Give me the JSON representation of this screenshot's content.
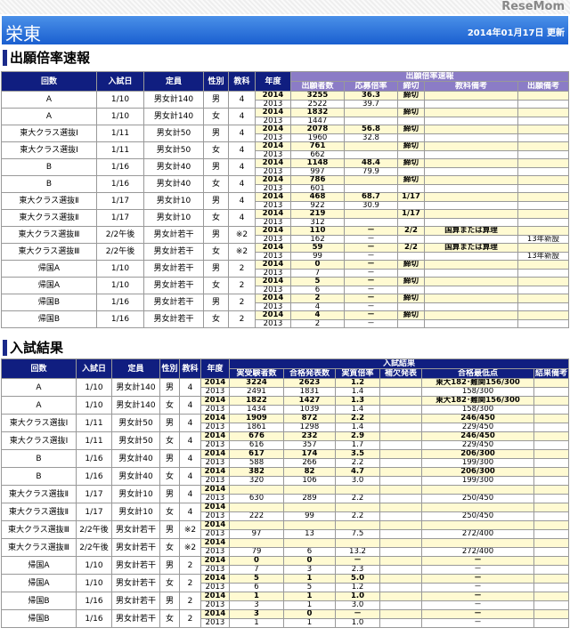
{
  "header": {
    "title": "栄東",
    "updated": "2014年01月17日 更新"
  },
  "section1": {
    "title": "出願倍率速報",
    "columns": [
      "回数",
      "入試日",
      "定員",
      "性別",
      "教科",
      "年度"
    ],
    "group_label": "出願倍率速報",
    "sub_columns": [
      "出願者数",
      "応募倍率",
      "締切",
      "教科備考",
      "出願備考"
    ],
    "rows": [
      {
        "round": "A",
        "date": "1/10",
        "cap": "男女計140",
        "sex": "男",
        "subj": "4",
        "y2014": [
          "2014",
          "3255",
          "36.3",
          "締切",
          "",
          ""
        ],
        "y2013": [
          "2013",
          "2522",
          "39.7",
          "",
          "",
          ""
        ]
      },
      {
        "round": "A",
        "date": "1/10",
        "cap": "男女計140",
        "sex": "女",
        "subj": "4",
        "y2014": [
          "2014",
          "1832",
          "",
          "締切",
          "",
          ""
        ],
        "y2013": [
          "2013",
          "1447",
          "",
          "",
          "",
          ""
        ]
      },
      {
        "round": "東大クラス選抜Ⅰ",
        "date": "1/11",
        "cap": "男女計50",
        "sex": "男",
        "subj": "4",
        "y2014": [
          "2014",
          "2078",
          "56.8",
          "締切",
          "",
          ""
        ],
        "y2013": [
          "2013",
          "1960",
          "32.8",
          "",
          "",
          ""
        ]
      },
      {
        "round": "東大クラス選抜Ⅰ",
        "date": "1/11",
        "cap": "男女計50",
        "sex": "女",
        "subj": "4",
        "y2014": [
          "2014",
          "761",
          "",
          "締切",
          "",
          ""
        ],
        "y2013": [
          "2013",
          "662",
          "",
          "",
          "",
          ""
        ]
      },
      {
        "round": "B",
        "date": "1/16",
        "cap": "男女計40",
        "sex": "男",
        "subj": "4",
        "y2014": [
          "2014",
          "1148",
          "48.4",
          "締切",
          "",
          ""
        ],
        "y2013": [
          "2013",
          "997",
          "79.9",
          "",
          "",
          ""
        ]
      },
      {
        "round": "B",
        "date": "1/16",
        "cap": "男女計40",
        "sex": "女",
        "subj": "4",
        "y2014": [
          "2014",
          "786",
          "",
          "締切",
          "",
          ""
        ],
        "y2013": [
          "2013",
          "601",
          "",
          "",
          "",
          ""
        ]
      },
      {
        "round": "東大クラス選抜Ⅱ",
        "date": "1/17",
        "cap": "男女計10",
        "sex": "男",
        "subj": "4",
        "y2014": [
          "2014",
          "468",
          "68.7",
          "1/17",
          "",
          ""
        ],
        "y2013": [
          "2013",
          "922",
          "30.9",
          "",
          "",
          ""
        ]
      },
      {
        "round": "東大クラス選抜Ⅱ",
        "date": "1/17",
        "cap": "男女計10",
        "sex": "女",
        "subj": "4",
        "y2014": [
          "2014",
          "219",
          "",
          "1/17",
          "",
          ""
        ],
        "y2013": [
          "2013",
          "312",
          "",
          "",
          "",
          ""
        ]
      },
      {
        "round": "東大クラス選抜Ⅲ",
        "date": "2/2午後",
        "cap": "男女計若干",
        "sex": "男",
        "subj": "※2",
        "y2014": [
          "2014",
          "110",
          "－",
          "2/2",
          "国算または算理",
          ""
        ],
        "y2013": [
          "2013",
          "162",
          "－",
          "",
          "",
          "13年新設"
        ]
      },
      {
        "round": "東大クラス選抜Ⅲ",
        "date": "2/2午後",
        "cap": "男女計若干",
        "sex": "女",
        "subj": "※2",
        "y2014": [
          "2014",
          "59",
          "－",
          "2/2",
          "国算または算理",
          ""
        ],
        "y2013": [
          "2013",
          "99",
          "－",
          "",
          "",
          "13年新設"
        ]
      },
      {
        "round": "帰国A",
        "date": "1/10",
        "cap": "男女計若干",
        "sex": "男",
        "subj": "2",
        "y2014": [
          "2014",
          "0",
          "－",
          "締切",
          "",
          ""
        ],
        "y2013": [
          "2013",
          "7",
          "－",
          "",
          "",
          ""
        ]
      },
      {
        "round": "帰国A",
        "date": "1/10",
        "cap": "男女計若干",
        "sex": "女",
        "subj": "2",
        "y2014": [
          "2014",
          "5",
          "－",
          "締切",
          "",
          ""
        ],
        "y2013": [
          "2013",
          "6",
          "－",
          "",
          "",
          ""
        ]
      },
      {
        "round": "帰国B",
        "date": "1/16",
        "cap": "男女計若干",
        "sex": "男",
        "subj": "2",
        "y2014": [
          "2014",
          "2",
          "－",
          "締切",
          "",
          ""
        ],
        "y2013": [
          "2013",
          "4",
          "－",
          "",
          "",
          ""
        ]
      },
      {
        "round": "帰国B",
        "date": "1/16",
        "cap": "男女計若干",
        "sex": "女",
        "subj": "2",
        "y2014": [
          "2014",
          "4",
          "－",
          "締切",
          "",
          ""
        ],
        "y2013": [
          "2013",
          "2",
          "－",
          "",
          "",
          ""
        ]
      }
    ]
  },
  "section2": {
    "title": "入試結果",
    "columns": [
      "回数",
      "入試日",
      "定員",
      "性別",
      "教科",
      "年度"
    ],
    "group_label": "入試結果",
    "sub_columns": [
      "実受験者数",
      "合格発表数",
      "実質倍率",
      "補欠発表",
      "合格最低点",
      "結果備考"
    ],
    "rows": [
      {
        "round": "A",
        "date": "1/10",
        "cap": "男女計140",
        "sex": "男",
        "subj": "4",
        "y2014": [
          "2014",
          "3224",
          "2623",
          "1.2",
          "",
          "東大182･難関156/300",
          ""
        ],
        "y2013": [
          "2013",
          "2491",
          "1831",
          "1.4",
          "",
          "158/300",
          ""
        ]
      },
      {
        "round": "A",
        "date": "1/10",
        "cap": "男女計140",
        "sex": "女",
        "subj": "4",
        "y2014": [
          "2014",
          "1822",
          "1427",
          "1.3",
          "",
          "東大182･難関156/300",
          ""
        ],
        "y2013": [
          "2013",
          "1434",
          "1039",
          "1.4",
          "",
          "158/300",
          ""
        ]
      },
      {
        "round": "東大クラス選抜Ⅰ",
        "date": "1/11",
        "cap": "男女計50",
        "sex": "男",
        "subj": "4",
        "y2014": [
          "2014",
          "1909",
          "872",
          "2.2",
          "",
          "246/450",
          ""
        ],
        "y2013": [
          "2013",
          "1861",
          "1298",
          "1.4",
          "",
          "229/450",
          ""
        ]
      },
      {
        "round": "東大クラス選抜Ⅰ",
        "date": "1/11",
        "cap": "男女計50",
        "sex": "女",
        "subj": "4",
        "y2014": [
          "2014",
          "676",
          "232",
          "2.9",
          "",
          "246/450",
          ""
        ],
        "y2013": [
          "2013",
          "616",
          "357",
          "1.7",
          "",
          "229/450",
          ""
        ]
      },
      {
        "round": "B",
        "date": "1/16",
        "cap": "男女計40",
        "sex": "男",
        "subj": "4",
        "y2014": [
          "2014",
          "617",
          "174",
          "3.5",
          "",
          "206/300",
          ""
        ],
        "y2013": [
          "2013",
          "588",
          "266",
          "2.2",
          "",
          "199/300",
          ""
        ]
      },
      {
        "round": "B",
        "date": "1/16",
        "cap": "男女計40",
        "sex": "女",
        "subj": "4",
        "y2014": [
          "2014",
          "382",
          "82",
          "4.7",
          "",
          "206/300",
          ""
        ],
        "y2013": [
          "2013",
          "320",
          "106",
          "3.0",
          "",
          "199/300",
          ""
        ]
      },
      {
        "round": "東大クラス選抜Ⅱ",
        "date": "1/17",
        "cap": "男女計10",
        "sex": "男",
        "subj": "4",
        "y2014": [
          "2014",
          "",
          "",
          "",
          "",
          "",
          ""
        ],
        "y2013": [
          "2013",
          "630",
          "289",
          "2.2",
          "",
          "250/450",
          ""
        ]
      },
      {
        "round": "東大クラス選抜Ⅱ",
        "date": "1/17",
        "cap": "男女計10",
        "sex": "女",
        "subj": "4",
        "y2014": [
          "2014",
          "",
          "",
          "",
          "",
          "",
          ""
        ],
        "y2013": [
          "2013",
          "222",
          "99",
          "2.2",
          "",
          "250/450",
          ""
        ]
      },
      {
        "round": "東大クラス選抜Ⅲ",
        "date": "2/2午後",
        "cap": "男女計若干",
        "sex": "男",
        "subj": "※2",
        "y2014": [
          "2014",
          "",
          "",
          "",
          "",
          "",
          ""
        ],
        "y2013": [
          "2013",
          "97",
          "13",
          "7.5",
          "",
          "272/400",
          ""
        ]
      },
      {
        "round": "東大クラス選抜Ⅲ",
        "date": "2/2午後",
        "cap": "男女計若干",
        "sex": "女",
        "subj": "※2",
        "y2014": [
          "2014",
          "",
          "",
          "",
          "",
          "",
          ""
        ],
        "y2013": [
          "2013",
          "79",
          "6",
          "13.2",
          "",
          "272/400",
          ""
        ]
      },
      {
        "round": "帰国A",
        "date": "1/10",
        "cap": "男女計若干",
        "sex": "男",
        "subj": "2",
        "y2014": [
          "2014",
          "0",
          "0",
          "－",
          "",
          "－",
          ""
        ],
        "y2013": [
          "2013",
          "7",
          "3",
          "2.3",
          "",
          "－",
          ""
        ]
      },
      {
        "round": "帰国A",
        "date": "1/10",
        "cap": "男女計若干",
        "sex": "女",
        "subj": "2",
        "y2014": [
          "2014",
          "5",
          "1",
          "5.0",
          "",
          "－",
          ""
        ],
        "y2013": [
          "2013",
          "6",
          "5",
          "1.2",
          "",
          "－",
          ""
        ]
      },
      {
        "round": "帰国B",
        "date": "1/16",
        "cap": "男女計若干",
        "sex": "男",
        "subj": "2",
        "y2014": [
          "2014",
          "1",
          "1",
          "1.0",
          "",
          "－",
          ""
        ],
        "y2013": [
          "2013",
          "3",
          "1",
          "3.0",
          "",
          "－",
          ""
        ]
      },
      {
        "round": "帰国B",
        "date": "1/16",
        "cap": "男女計若干",
        "sex": "女",
        "subj": "2",
        "y2014": [
          "2014",
          "3",
          "0",
          "－",
          "",
          "－",
          ""
        ],
        "y2013": [
          "2013",
          "1",
          "1",
          "1.0",
          "",
          "－",
          ""
        ]
      }
    ]
  },
  "watermark": "ReseMom",
  "colors": {
    "header_blue": "#1a5fd0",
    "navy": "#101e80",
    "purple": "#8b7cc6",
    "highlight": "#fffad2"
  }
}
